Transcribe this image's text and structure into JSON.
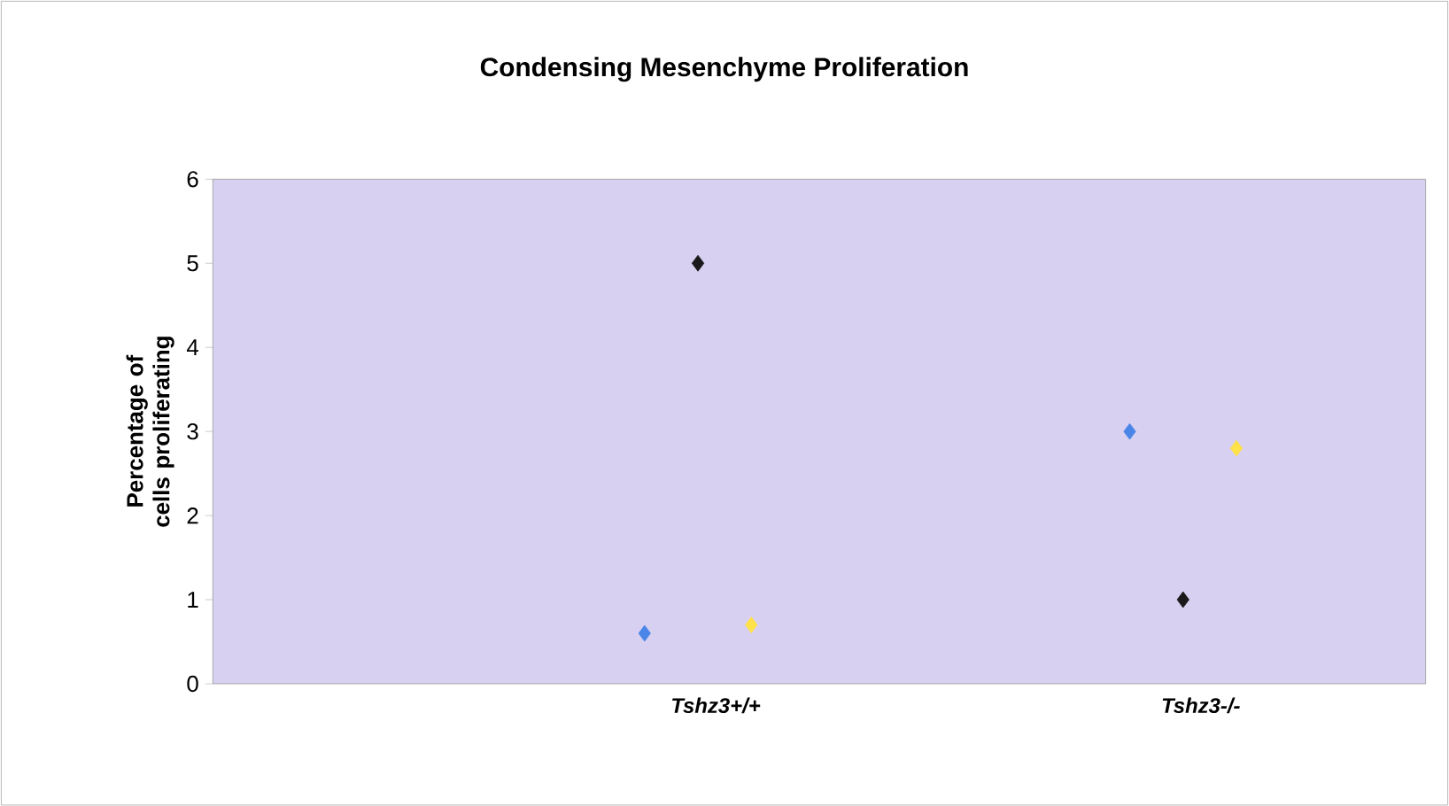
{
  "chart_data": {
    "type": "scatter",
    "title": "Condensing Mesenchyme Proliferation",
    "ylabel": "Percentage of cells proliferating",
    "categories": [
      "Tshz3+/+",
      "Tshz3-/-"
    ],
    "series": [
      {
        "color": "#4a86e8",
        "values": [
          0.6,
          3.0
        ]
      },
      {
        "color": "#1a1a1a",
        "values": [
          5.0,
          1.0
        ]
      },
      {
        "color": "#ffe14a",
        "values": [
          0.7,
          2.8
        ]
      }
    ],
    "ylim": [
      0,
      6
    ],
    "yticks": [
      0,
      1,
      2,
      3,
      4,
      5,
      6
    ],
    "grid": false,
    "marker": "diamond"
  }
}
